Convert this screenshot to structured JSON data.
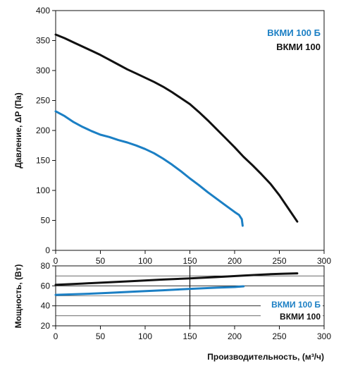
{
  "chart_data": [
    {
      "type": "line",
      "ylabel": "Давление, ΔP (Па)",
      "xlim": [
        0,
        300
      ],
      "ylim": [
        0,
        400
      ],
      "x_ticks": [
        "0",
        "50",
        "100",
        "150",
        "200",
        "250",
        "300"
      ],
      "y_ticks": [
        "0",
        "50",
        "100",
        "150",
        "200",
        "250",
        "300",
        "350",
        "400"
      ],
      "grid": "none",
      "legend_position": "top-right",
      "series": [
        {
          "name": "ВКМИ 100 Б",
          "color": "#1b7fc4",
          "x": [
            0,
            10,
            20,
            30,
            40,
            50,
            60,
            70,
            80,
            90,
            100,
            110,
            120,
            130,
            140,
            150,
            160,
            170,
            180,
            190,
            200,
            205,
            208,
            209
          ],
          "y": [
            232,
            224,
            214,
            206,
            199,
            193,
            189,
            184,
            180,
            175,
            169,
            162,
            153,
            143,
            132,
            120,
            109,
            97,
            86,
            75,
            64,
            59,
            52,
            41
          ]
        },
        {
          "name": "ВКМИ 100",
          "color": "#111111",
          "x": [
            0,
            10,
            20,
            30,
            40,
            50,
            60,
            70,
            80,
            90,
            100,
            110,
            120,
            130,
            140,
            150,
            160,
            170,
            180,
            190,
            200,
            210,
            220,
            230,
            240,
            250,
            260,
            270
          ],
          "y": [
            360,
            354,
            347,
            340,
            333,
            326,
            318,
            310,
            302,
            295,
            288,
            281,
            273,
            264,
            254,
            244,
            231,
            217,
            202,
            187,
            172,
            156,
            142,
            127,
            111,
            92,
            70,
            48
          ]
        }
      ]
    },
    {
      "type": "line",
      "xlabel": "Производительность, (м³/ч)",
      "ylabel": "Мощность, (Вт)",
      "xlim": [
        0,
        300
      ],
      "ylim": [
        20,
        80
      ],
      "x_ticks": [
        "0",
        "50",
        "100",
        "150",
        "200",
        "250",
        "300"
      ],
      "y_ticks": [
        "20",
        "40",
        "60",
        "80"
      ],
      "grid": "horizontal",
      "legend_position": "bottom-right",
      "series": [
        {
          "name": "ВКМИ 100 Б",
          "color": "#1b7fc4",
          "x": [
            0,
            30,
            60,
            90,
            120,
            150,
            180,
            200,
            210
          ],
          "y": [
            51,
            51.8,
            53,
            54.3,
            55.6,
            57,
            58.2,
            58.8,
            59.5
          ]
        },
        {
          "name": "ВКМИ 100",
          "color": "#111111",
          "x": [
            0,
            30,
            60,
            90,
            120,
            150,
            180,
            210,
            240,
            255,
            270
          ],
          "y": [
            61,
            62.3,
            63.6,
            64.9,
            66.3,
            67.5,
            68.8,
            70.3,
            71.7,
            72.2,
            72.5
          ]
        }
      ]
    }
  ]
}
